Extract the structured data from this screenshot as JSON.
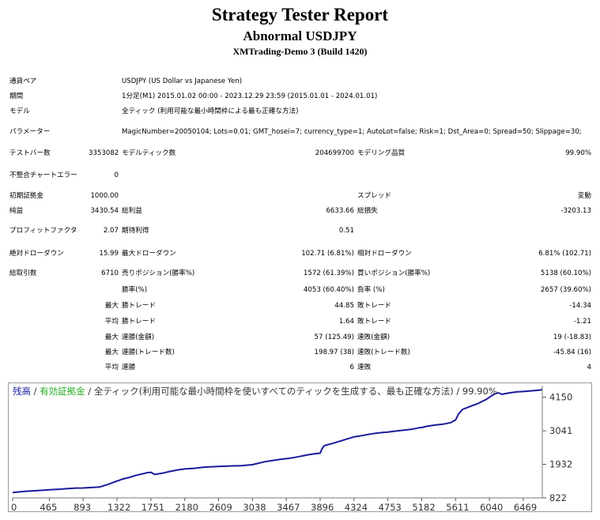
{
  "report": {
    "title": "Strategy Tester Report",
    "ea_name": "Abnormal USDJPY",
    "server": "XMTrading-Demo 3 (Build 1420)"
  },
  "settings": {
    "symbol_label": "通貨ペア",
    "symbol_value": "USDJPY (US Dollar vs Japanese Yen)",
    "period_label": "期間",
    "period_value": "1分足(M1) 2015.01.02 00:00 - 2023.12.29 23:59 (2015.01.01 - 2024.01.01)",
    "model_label": "モデル",
    "model_value": "全ティック (利用可能な最小時間枠による最も正確な方法)",
    "params_label": "パラメーター",
    "params_value": "MagicNumber=20050104; Lots=0.01; GMT_hosei=7; currency_type=1; AutoLot=false; Risk=1; Dst_Area=0; Spread=50; Slippage=30;"
  },
  "stats": {
    "bars_label": "テストバー数",
    "bars_value": "3353082",
    "ticks_label": "モデルティック数",
    "ticks_value": "204699700",
    "quality_label": "モデリング品質",
    "quality_value": "99.90%",
    "mismatch_label": "不整合チャートエラー",
    "mismatch_value": "0",
    "deposit_label": "初期証拠金",
    "deposit_value": "1000.00",
    "spread_label": "スプレッド",
    "spread_value": "変動",
    "net_label": "純益",
    "net_value": "3430.54",
    "gross_profit_label": "総利益",
    "gross_profit_value": "6633.66",
    "gross_loss_label": "総損失",
    "gross_loss_value": "-3203.13",
    "pf_label": "プロフィットファクタ",
    "pf_value": "2.07",
    "expected_label": "期待利得",
    "expected_value": "0.51",
    "abs_dd_label": "絶対ドローダウン",
    "abs_dd_value": "15.99",
    "max_dd_label": "最大ドローダウン",
    "max_dd_value": "102.71 (6.81%)",
    "rel_dd_label": "相対ドローダウン",
    "rel_dd_value": "6.81% (102.71)",
    "trades_label": "総取引数",
    "trades_value": "6710",
    "short_label": "売りポジション(勝率%)",
    "short_value": "1572 (61.39%)",
    "long_label": "買いポジション(勝率%)",
    "long_value": "5138 (60.10%)",
    "win_label": "勝率(%)",
    "win_value": "4053 (60.40%)",
    "lose_label": "負率 (%)",
    "lose_value": "2657 (39.60%)",
    "max_word": "最大",
    "avg_word": "平均",
    "largest_win_label": "勝トレード",
    "largest_win_value": "44.85",
    "largest_loss_label": "敗トレード",
    "largest_loss_value": "-14.34",
    "avg_win_label": "勝トレード",
    "avg_win_value": "1.64",
    "avg_loss_label": "敗トレード",
    "avg_loss_value": "-1.21",
    "consec_wins_amt_label": "連勝(金額)",
    "consec_wins_amt_value": "57 (125.49)",
    "consec_loss_amt_label": "連敗(金額)",
    "consec_loss_amt_value": "19 (-18.83)",
    "consec_profit_label": "連勝(トレード数)",
    "consec_profit_value": "198.97 (38)",
    "consec_loss_label": "連敗(トレード数)",
    "consec_loss_value": "-45.84 (16)",
    "avg_consec_wins_label": "連勝",
    "avg_consec_wins_value": "6",
    "avg_consec_loss_label": "連敗",
    "avg_consec_loss_value": "4"
  },
  "chart_data": {
    "type": "line",
    "legend": {
      "balance": "残高",
      "separator1": " / ",
      "equity": "有効証拠金",
      "separator2": " / ",
      "model": "全ティック(利用可能な最小時間枠を使いすべてのティックを生成する、最も正確な方法)",
      "separator3": " / ",
      "quality": "99.90%"
    },
    "colors": {
      "balance": "#1a1a9c",
      "equity": "#22aa22",
      "grid": "#c8c8c8",
      "text": "#333333"
    },
    "x_ticks": [
      "0",
      "465",
      "893",
      "1322",
      "1751",
      "2180",
      "2609",
      "3038",
      "3467",
      "3896",
      "4324",
      "4753",
      "5182",
      "5611",
      "6040",
      "6469"
    ],
    "y_ticks": [
      "822",
      "1932",
      "3041",
      "4150"
    ],
    "xlim": [
      0,
      6710
    ],
    "ylim": [
      822,
      4430
    ],
    "series": [
      {
        "key": "balance",
        "x": [
          0,
          150,
          300,
          465,
          600,
          700,
          800,
          893,
          1000,
          1100,
          1200,
          1322,
          1400,
          1480,
          1550,
          1620,
          1700,
          1751,
          1800,
          1900,
          2000,
          2100,
          2180,
          2300,
          2400,
          2500,
          2609,
          2700,
          2800,
          2900,
          3038,
          3100,
          3200,
          3300,
          3400,
          3467,
          3550,
          3650,
          3750,
          3850,
          3896,
          3920,
          3950,
          4050,
          4150,
          4250,
          4324,
          4400,
          4500,
          4600,
          4700,
          4753,
          4850,
          4950,
          5050,
          5150,
          5182,
          5250,
          5350,
          5450,
          5550,
          5611,
          5650,
          5700,
          5800,
          5900,
          6000,
          6040,
          6100,
          6150,
          6200,
          6300,
          6400,
          6469,
          6550,
          6650,
          6710
        ],
        "y": [
          1000,
          1040,
          1060,
          1090,
          1110,
          1130,
          1145,
          1150,
          1165,
          1180,
          1260,
          1380,
          1450,
          1500,
          1560,
          1600,
          1650,
          1670,
          1600,
          1640,
          1700,
          1750,
          1780,
          1800,
          1830,
          1850,
          1860,
          1870,
          1880,
          1890,
          1920,
          1960,
          2020,
          2060,
          2100,
          2120,
          2150,
          2200,
          2250,
          2290,
          2300,
          2450,
          2550,
          2620,
          2700,
          2780,
          2840,
          2870,
          2920,
          2960,
          2990,
          3000,
          3030,
          3060,
          3090,
          3140,
          3150,
          3190,
          3230,
          3260,
          3310,
          3400,
          3600,
          3750,
          3850,
          3950,
          4080,
          4150,
          4250,
          4300,
          4250,
          4300,
          4330,
          4340,
          4360,
          4380,
          4400
        ]
      }
    ]
  }
}
